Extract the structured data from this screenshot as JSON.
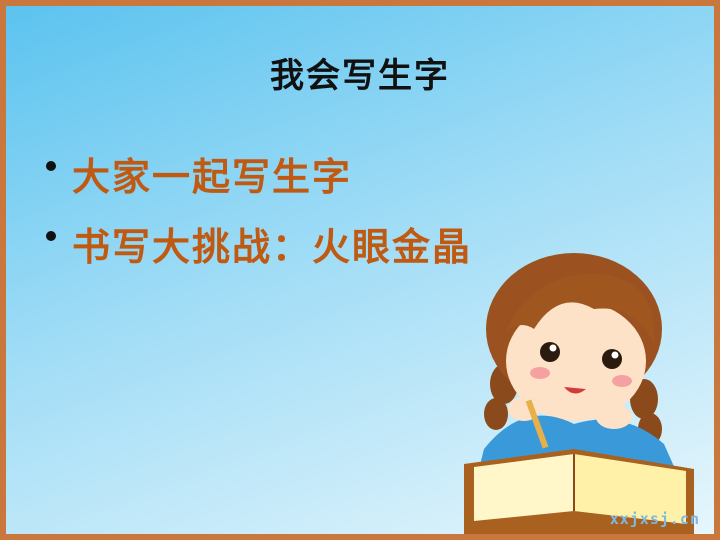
{
  "slide": {
    "title": "我会写生字",
    "bullets": [
      {
        "text": "大家一起写生字"
      },
      {
        "text": "书写大挑战：火眼金晶"
      }
    ],
    "illustration": "child-reading-book",
    "watermark": "xxjxsj.cn"
  },
  "colors": {
    "border": "#c9773d",
    "bullet_text": "#c05a12",
    "title_text": "#111111",
    "background_top": "#5bc3ef",
    "background_bottom": "#e6f6fc"
  }
}
